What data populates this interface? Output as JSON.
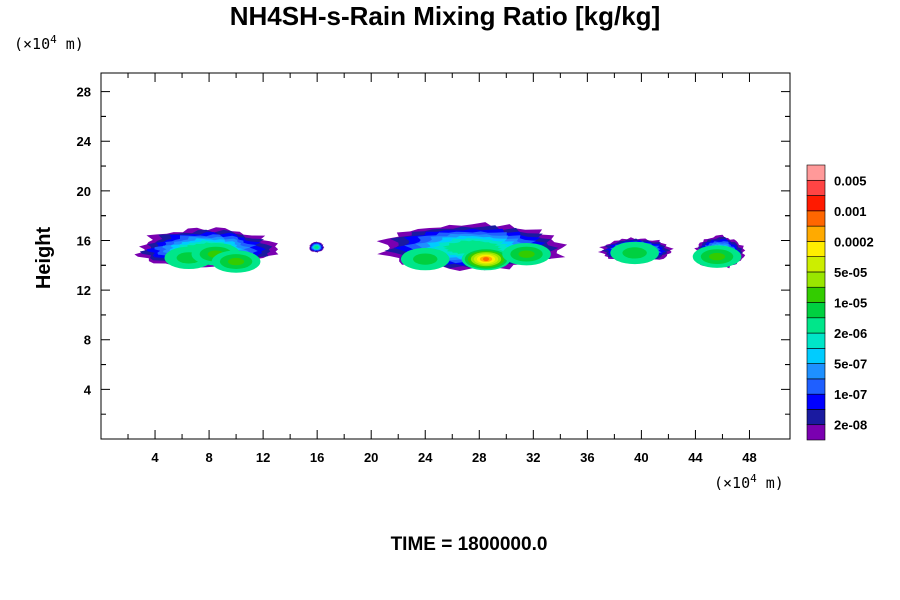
{
  "chart_data": {
    "type": "heatmap",
    "title": "NH4SH-s-Rain Mixing Ratio [kg/kg]",
    "xlabel": "",
    "ylabel": "Height",
    "x_unit": {
      "prefix": "(×10",
      "exp": "4",
      "suffix": " m)"
    },
    "y_unit": {
      "prefix": "(×10",
      "exp": "4",
      "suffix": " m)"
    },
    "xlim": [
      0,
      51
    ],
    "ylim": [
      0,
      29.5
    ],
    "x_ticks": [
      4,
      8,
      12,
      16,
      20,
      24,
      28,
      32,
      36,
      40,
      44,
      48
    ],
    "y_ticks": [
      4,
      8,
      12,
      16,
      20,
      24,
      28
    ],
    "time_label": "TIME = 1800000.0",
    "colorbar": {
      "colors": [
        "#7a00b0",
        "#1a1aa0",
        "#0000ff",
        "#1f5fff",
        "#1e90ff",
        "#00ccff",
        "#00e5c8",
        "#00e68a",
        "#00d040",
        "#33cc00",
        "#99e600",
        "#ccee00",
        "#ffee00",
        "#ffaa00",
        "#ff6600",
        "#ff1a00",
        "#ff4444",
        "#ff9999"
      ],
      "labels": [
        "2e-08",
        "1e-07",
        "5e-07",
        "2e-06",
        "1e-05",
        "5e-05",
        "0.0002",
        "0.001",
        "0.005"
      ]
    },
    "clouds": [
      {
        "x0": 2.6,
        "x1": 13.0,
        "ytop": 17.0,
        "ybot": 13.6,
        "core": [
          {
            "x": 6.5,
            "y": 14.6,
            "level": 8
          },
          {
            "x": 8.5,
            "y": 14.9,
            "level": 9
          },
          {
            "x": 10.0,
            "y": 14.3,
            "level": 9
          }
        ]
      },
      {
        "x0": 15.4,
        "x1": 16.5,
        "ytop": 15.9,
        "ybot": 15.0,
        "core": []
      },
      {
        "x0": 20.6,
        "x1": 34.4,
        "ytop": 17.4,
        "ybot": 13.4,
        "core": [
          {
            "x": 24.0,
            "y": 14.5,
            "level": 8
          },
          {
            "x": 28.5,
            "y": 14.5,
            "level": 14
          },
          {
            "x": 31.5,
            "y": 14.9,
            "level": 9
          }
        ]
      },
      {
        "x0": 36.9,
        "x1": 42.3,
        "ytop": 16.2,
        "ybot": 14.2,
        "core": [
          {
            "x": 39.5,
            "y": 15.0,
            "level": 8
          }
        ]
      },
      {
        "x0": 43.9,
        "x1": 47.6,
        "ytop": 16.4,
        "ybot": 13.6,
        "core": [
          {
            "x": 45.6,
            "y": 14.7,
            "level": 9
          }
        ]
      }
    ]
  }
}
